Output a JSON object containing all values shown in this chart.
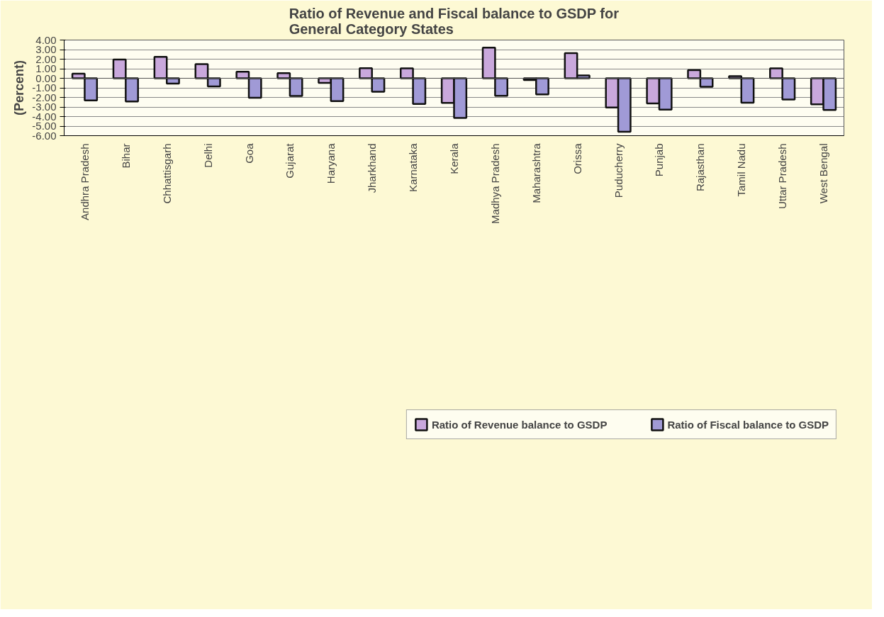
{
  "chart_data": {
    "type": "bar",
    "title": "Ratio of Revenue and Fiscal balance to GSDP for\nGeneral Category States",
    "ylabel": "(Percent)",
    "categories": [
      "Andhra Pradesh",
      "Bihar",
      "Chhattisgarh",
      "Delhi",
      "Goa",
      "Gujarat",
      "Haryana",
      "Jharkhand",
      "Karnataka",
      "Kerala",
      "Madhya Pradesh",
      "Maharashtra",
      "Orissa",
      "Puducherry",
      "Punjab",
      "Rajasthan",
      "Tamil Nadu",
      "Uttar Pradesh",
      "West Bengal"
    ],
    "series": [
      {
        "name": "Ratio of Revenue balance to GSDP",
        "color": "#c9a8dc",
        "values": [
          0.48,
          1.97,
          2.25,
          1.48,
          0.68,
          0.54,
          -0.48,
          1.06,
          1.04,
          -2.58,
          3.2,
          -0.18,
          2.63,
          -3.05,
          -2.63,
          0.85,
          0.22,
          1.04,
          -2.73
        ]
      },
      {
        "name": "Ratio of Fiscal balance to GSDP",
        "color": "#a09ad6",
        "values": [
          -2.32,
          -2.43,
          -0.55,
          -0.86,
          -2.03,
          -1.85,
          -2.38,
          -1.4,
          -2.68,
          -4.15,
          -1.83,
          -1.68,
          0.3,
          -5.6,
          -3.28,
          -0.88,
          -2.55,
          -2.23,
          -3.32
        ]
      }
    ],
    "ylim": [
      -6,
      4
    ],
    "yticks": [
      {
        "value": 4,
        "label": "4.00"
      },
      {
        "value": 3,
        "label": "3.00"
      },
      {
        "value": 2,
        "label": "2.00"
      },
      {
        "value": 1,
        "label": "1.00"
      },
      {
        "value": 0,
        "label": "0.00"
      },
      {
        "value": -1,
        "label": "-1.00"
      },
      {
        "value": -2,
        "label": "-2.00"
      },
      {
        "value": -3,
        "label": "-3.00"
      },
      {
        "value": -4,
        "label": "-4.00"
      },
      {
        "value": -5,
        "label": "-5.00"
      },
      {
        "value": -6,
        "label": "-6.00"
      }
    ],
    "grid": "y",
    "legend": "bottom"
  }
}
